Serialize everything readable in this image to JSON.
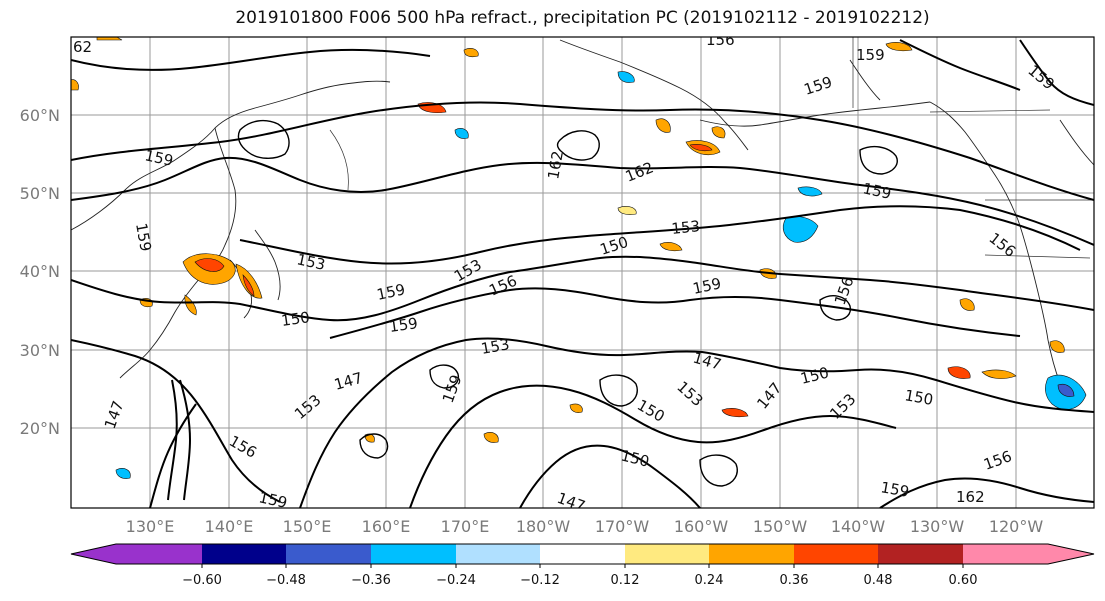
{
  "title": "2019101800 F006 500 hPa refract., precipitation PC (2019102112 - 2019102212)",
  "lat_labels": [
    "60°N",
    "50°N",
    "40°N",
    "30°N",
    "20°N"
  ],
  "lon_labels": [
    "130°E",
    "140°E",
    "150°E",
    "160°E",
    "170°E",
    "180°W",
    "170°W",
    "160°W",
    "150°W",
    "140°W",
    "130°W",
    "120°W"
  ],
  "colorbar": {
    "colors": [
      "#9932cc",
      "#00008b",
      "#3a5bcd",
      "#00bfff",
      "#b0e0ff",
      "#ffffff",
      "#ffea80",
      "#ffa500",
      "#ff4500",
      "#b22222",
      "#ff88aa"
    ],
    "ticks": [
      "−0.60",
      "−0.48",
      "−0.36",
      "−0.24",
      "−0.12",
      "0.12",
      "0.24",
      "0.36",
      "0.48",
      "0.60"
    ]
  },
  "contour_labels": [
    "62",
    "156",
    "159",
    "159",
    "159",
    "159",
    "162",
    "162",
    "159",
    "153",
    "153",
    "150",
    "156",
    "153",
    "156",
    "159",
    "159",
    "150",
    "156",
    "159",
    "153",
    "147",
    "147",
    "150",
    "150",
    "153",
    "153",
    "147",
    "159",
    "150",
    "150",
    "162",
    "159",
    "156",
    "147",
    "147",
    "153",
    "156",
    "159",
    "159"
  ]
}
